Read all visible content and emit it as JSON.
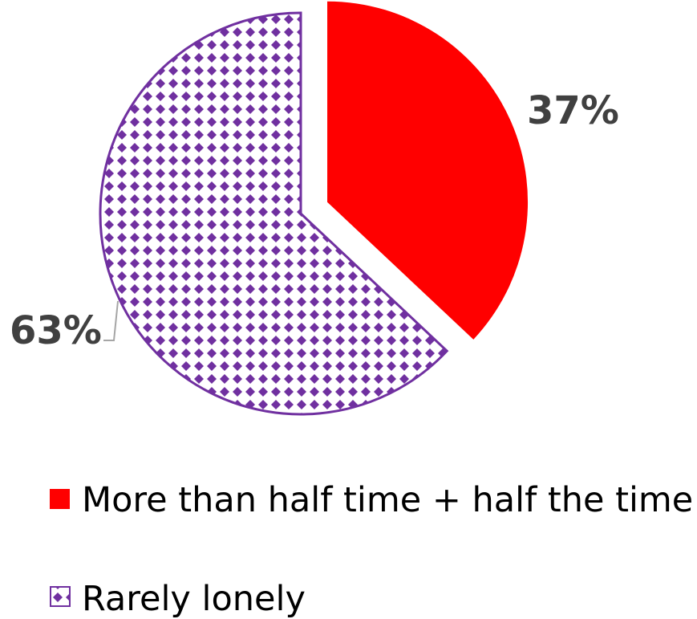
{
  "chart_data": {
    "type": "pie",
    "title": "",
    "slices": [
      {
        "label": "More than half time + half the time",
        "value": 37,
        "display": "37%",
        "color": "#ff0000",
        "pattern": "solid",
        "exploded": true
      },
      {
        "label": "Rarely lonely",
        "value": 63,
        "display": "63%",
        "color": "#7030a0",
        "pattern": "diamond-checker",
        "exploded": false
      }
    ],
    "legend_position": "bottom",
    "start_angle": "12 o'clock",
    "direction": "clockwise"
  }
}
